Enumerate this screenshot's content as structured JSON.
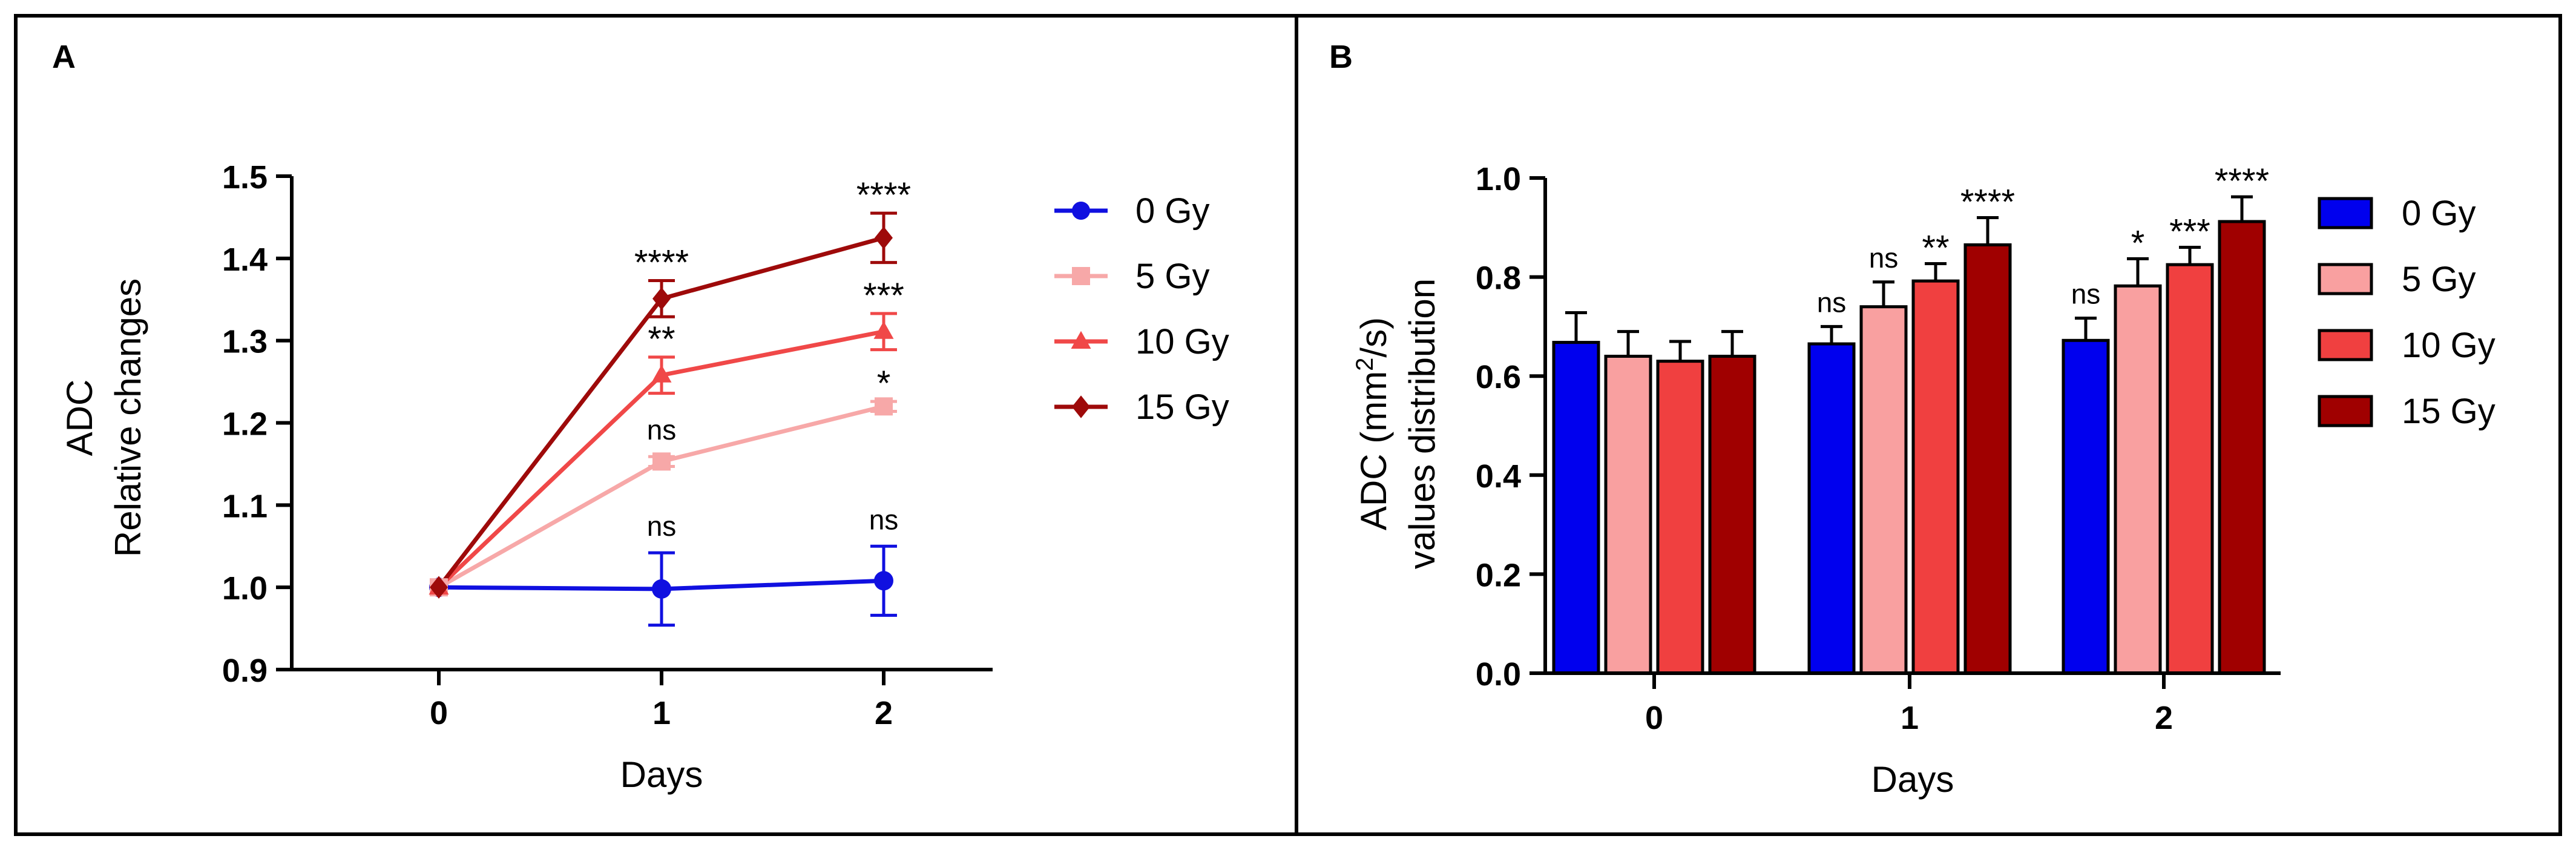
{
  "panels": {
    "a_label": "A",
    "b_label": "B"
  },
  "chart_data": [
    {
      "type": "line",
      "panel": "A",
      "title": "",
      "xlabel": "Days",
      "ylabel_line1": "ADC",
      "ylabel_line2": "Relative changes",
      "x": [
        0,
        1,
        2
      ],
      "xtick_labels": [
        "0",
        "1",
        "2"
      ],
      "ylim": [
        0.9,
        1.5
      ],
      "yticks": [
        0.9,
        1.0,
        1.1,
        1.2,
        1.3,
        1.4,
        1.5
      ],
      "ytick_labels": [
        "0.9",
        "1.0",
        "1.1",
        "1.2",
        "1.3",
        "1.4",
        "1.5"
      ],
      "legend_position": "right",
      "series": [
        {
          "name": "0 Gy",
          "color": "#1010e0",
          "marker": "circle",
          "values": [
            1.0,
            0.998,
            1.008
          ],
          "errors": [
            0,
            0.044,
            0.042
          ],
          "annotations": [
            "",
            "ns",
            "ns"
          ]
        },
        {
          "name": "5 Gy",
          "color": "#f7a8a8",
          "marker": "square",
          "values": [
            1.0,
            1.153,
            1.22
          ],
          "errors": [
            0,
            0.006,
            0.006
          ],
          "annotations": [
            "",
            "ns",
            "*"
          ]
        },
        {
          "name": "10 Gy",
          "color": "#f04848",
          "marker": "triangle",
          "values": [
            1.0,
            1.258,
            1.311
          ],
          "errors": [
            0,
            0.022,
            0.022
          ],
          "annotations": [
            "",
            "**",
            "***"
          ]
        },
        {
          "name": "15 Gy",
          "color": "#9e0a0a",
          "marker": "diamond",
          "values": [
            1.0,
            1.351,
            1.425
          ],
          "errors": [
            0,
            0.022,
            0.03
          ],
          "annotations": [
            "",
            "****",
            "****"
          ]
        }
      ]
    },
    {
      "type": "bar",
      "panel": "B",
      "title": "",
      "xlabel": "Days",
      "ylabel_line1_prefix": "ADC (mm",
      "ylabel_sup": "2",
      "ylabel_line1_suffix": "/s)",
      "ylabel_line2": "values distribution",
      "categories": [
        "0",
        "1",
        "2"
      ],
      "ylim": [
        0.0,
        1.0
      ],
      "yticks": [
        0.0,
        0.2,
        0.4,
        0.6,
        0.8,
        1.0
      ],
      "ytick_labels": [
        "0.0",
        "0.2",
        "0.4",
        "0.6",
        "0.8",
        "1.0"
      ],
      "legend_position": "right",
      "series": [
        {
          "name": "0 Gy",
          "color": "#0000ee",
          "values": [
            0.668,
            0.665,
            0.672
          ],
          "errors": [
            0.06,
            0.035,
            0.045
          ],
          "annotations": [
            "",
            "ns",
            "ns"
          ]
        },
        {
          "name": "5 Gy",
          "color": "#f9a0a0",
          "values": [
            0.64,
            0.74,
            0.782
          ],
          "errors": [
            0.05,
            0.05,
            0.055
          ],
          "annotations": [
            "",
            "ns",
            "*"
          ]
        },
        {
          "name": "10 Gy",
          "color": "#f04040",
          "values": [
            0.63,
            0.792,
            0.825
          ],
          "errors": [
            0.04,
            0.035,
            0.035
          ],
          "annotations": [
            "",
            "**",
            "***"
          ]
        },
        {
          "name": "15 Gy",
          "color": "#a00000",
          "values": [
            0.64,
            0.865,
            0.912
          ],
          "errors": [
            0.05,
            0.055,
            0.05
          ],
          "annotations": [
            "",
            "****",
            "****"
          ]
        }
      ]
    }
  ]
}
